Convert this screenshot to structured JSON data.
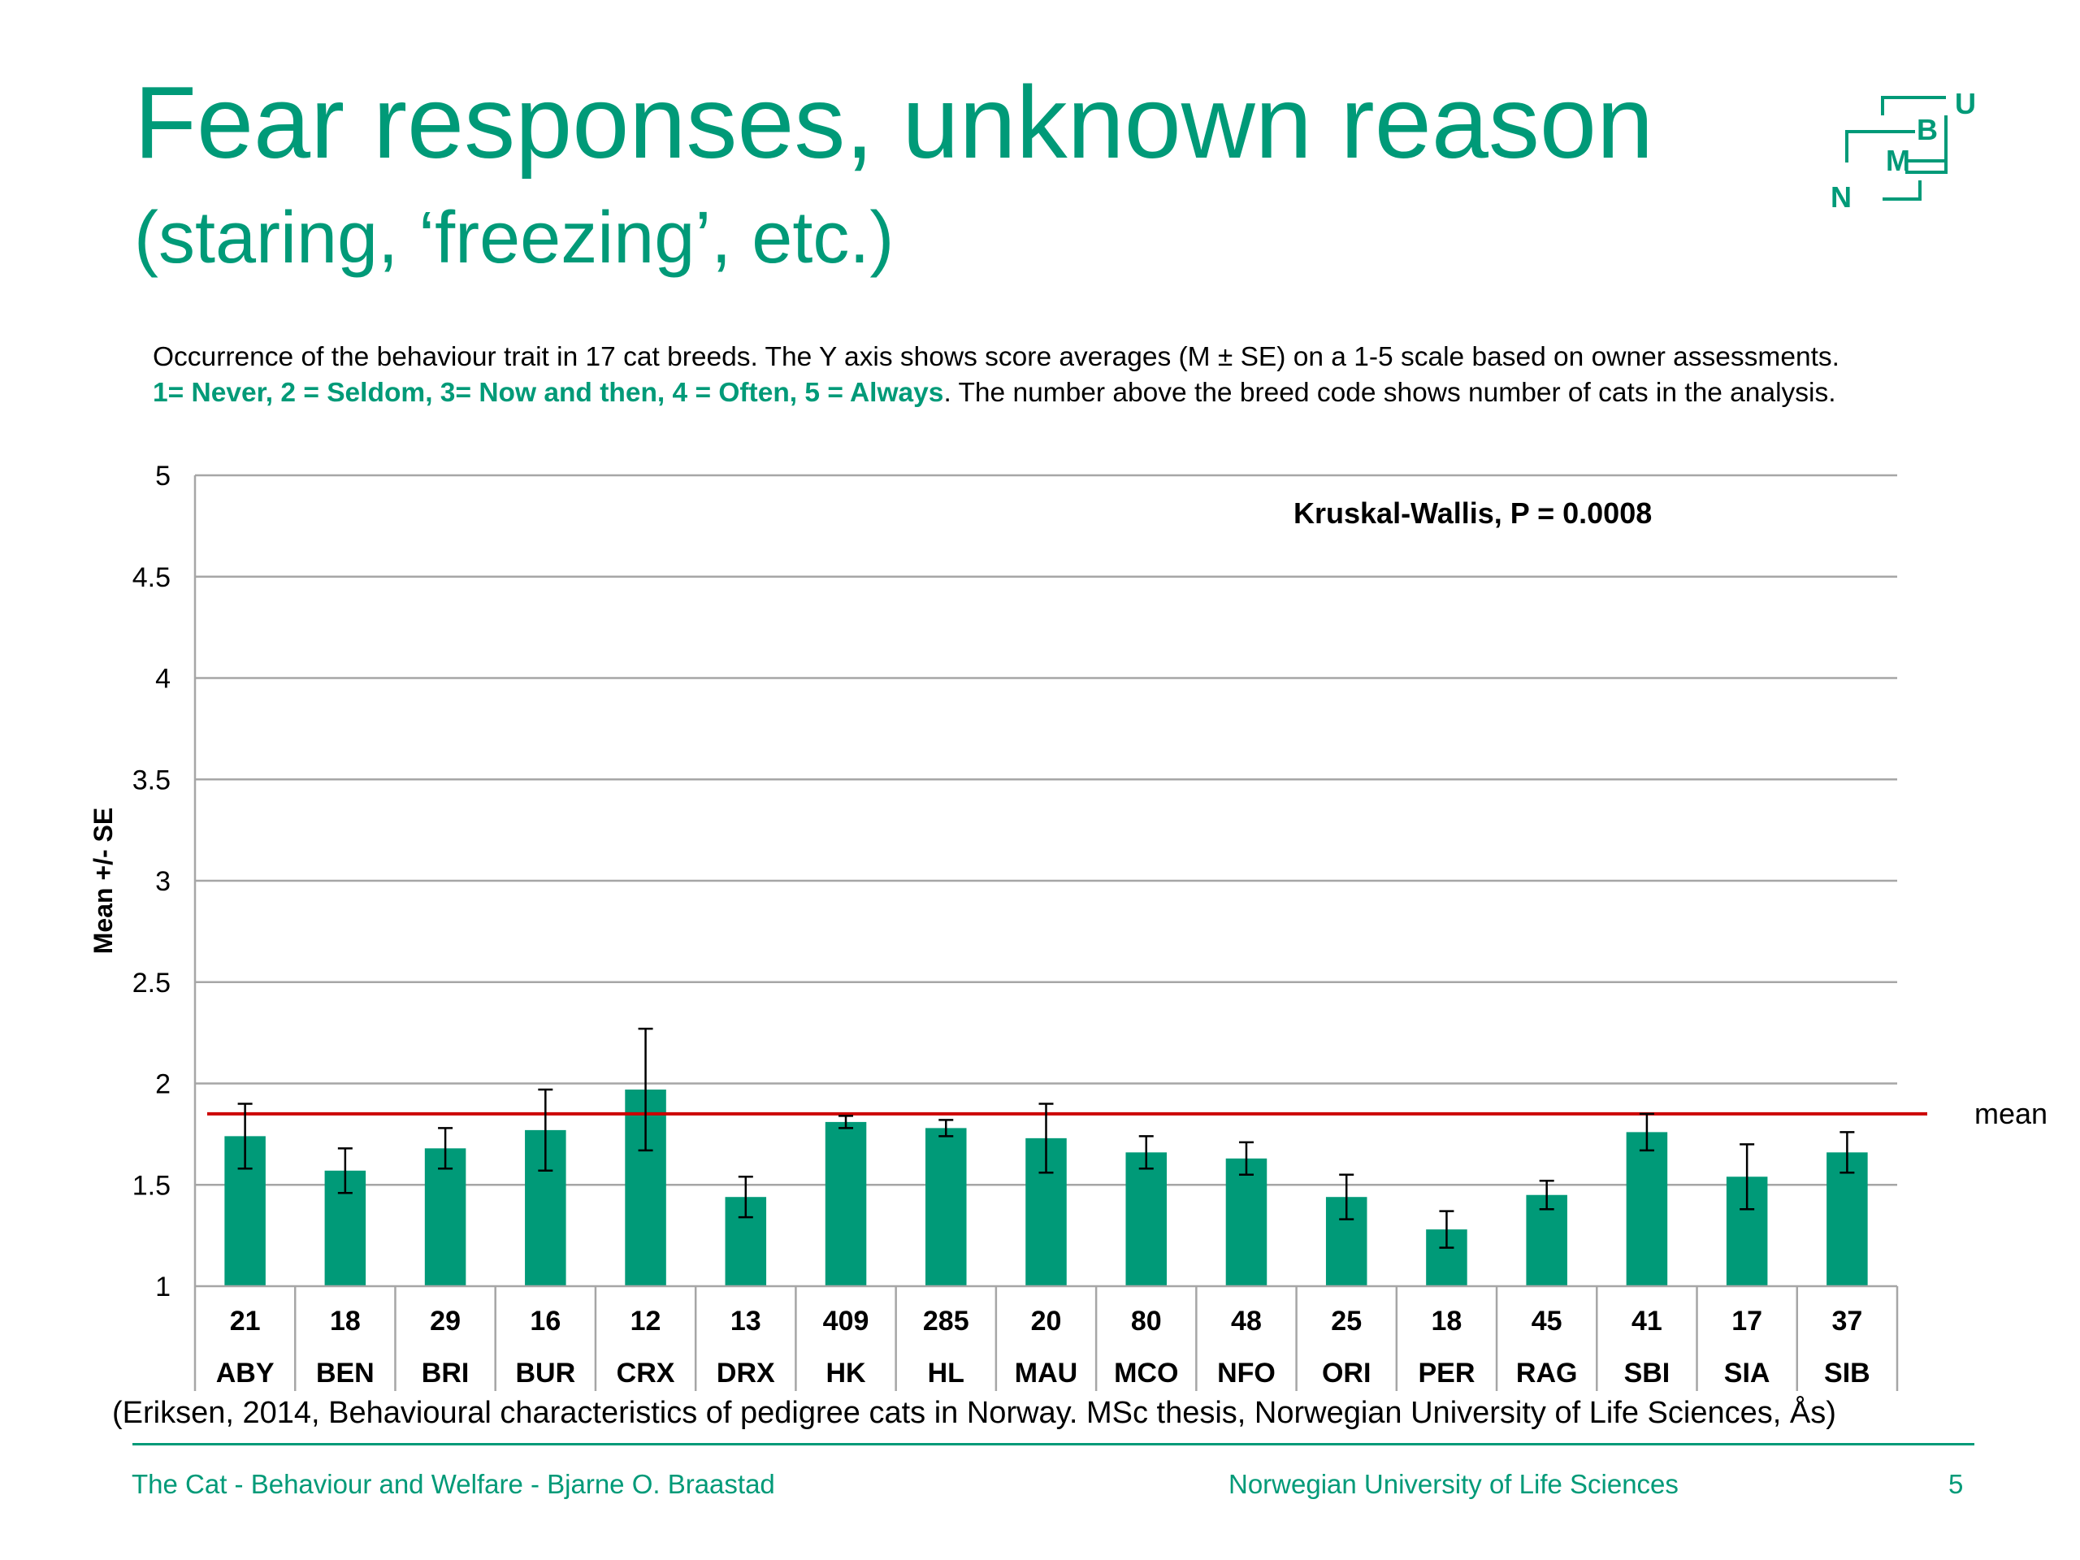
{
  "slide": {
    "title": "Fear responses, unknown reason",
    "subtitle": "(staring, ‘freezing’, etc.)",
    "description_line1": "Occurrence of the behaviour trait in 17 cat breeds. The Y axis shows score averages (M ± SE) on a 1-5 scale based on owner assessments.",
    "description_scale": "1= Never, 2 = Seldom, 3= Now and then, 4 = Often, 5 = Always",
    "description_rest": ". The number above the breed code shows number of cats in the analysis.",
    "citation": "(Eriksen, 2014, Behavioural characteristics of pedigree cats in Norway. MSc thesis, Norwegian University of Life Sciences, Ås)",
    "footer_left": "The Cat - Behaviour and Welfare - Bjarne O. Braastad",
    "footer_center": "Norwegian University of Life Sciences",
    "page_number": "5"
  },
  "logo": {
    "letters": [
      "U",
      "B",
      "M",
      "N"
    ],
    "color": "#009a78"
  },
  "chart_data": {
    "type": "bar",
    "ylabel": "Mean +/- SE",
    "ylim": [
      1,
      5
    ],
    "yticks": [
      {
        "value": 1,
        "label": "1"
      },
      {
        "value": 1.5,
        "label": "1.5"
      },
      {
        "value": 2,
        "label": "2"
      },
      {
        "value": 2.5,
        "label": "2.5"
      },
      {
        "value": 3,
        "label": "3"
      },
      {
        "value": 3.5,
        "label": "3.5"
      },
      {
        "value": 4,
        "label": "4"
      },
      {
        "value": 4.5,
        "label": "4.5"
      },
      {
        "value": 5,
        "label": "5"
      }
    ],
    "categories": [
      "ABY",
      "BEN",
      "BRI",
      "BUR",
      "CRX",
      "DRX",
      "HK",
      "HL",
      "MAU",
      "MCO",
      "NFO",
      "ORI",
      "PER",
      "RAG",
      "SBI",
      "SIA",
      "SIB"
    ],
    "counts": [
      "21",
      "18",
      "29",
      "16",
      "12",
      "13",
      "409",
      "285",
      "20",
      "80",
      "48",
      "25",
      "18",
      "45",
      "41",
      "17",
      "37"
    ],
    "values": [
      1.74,
      1.57,
      1.68,
      1.77,
      1.97,
      1.44,
      1.81,
      1.78,
      1.73,
      1.66,
      1.63,
      1.44,
      1.28,
      1.45,
      1.76,
      1.54,
      1.66
    ],
    "errors": [
      0.16,
      0.11,
      0.1,
      0.2,
      0.3,
      0.1,
      0.03,
      0.04,
      0.17,
      0.08,
      0.08,
      0.11,
      0.09,
      0.07,
      0.09,
      0.16,
      0.1
    ],
    "mean_line": {
      "value": 1.85,
      "label": "mean",
      "color": "#cc0000"
    },
    "annotation": "Kruskal-Wallis, P = 0.0008",
    "bar_color": "#009a78",
    "grid": true
  }
}
